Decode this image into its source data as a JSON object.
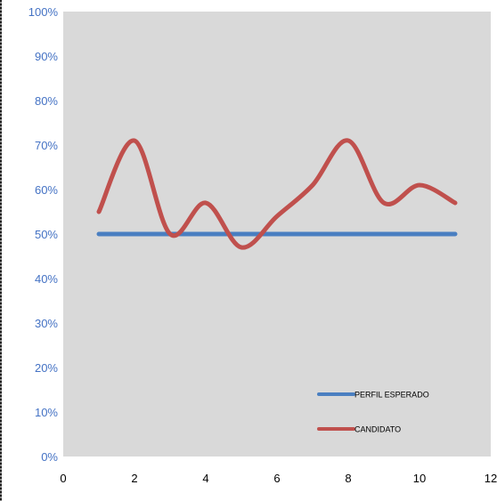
{
  "chart_data": {
    "type": "line",
    "x": [
      1,
      2,
      3,
      4,
      5,
      6,
      7,
      8,
      9,
      10,
      11
    ],
    "series": [
      {
        "name": "PERFIL ESPERADO",
        "color": "#4a7fc1",
        "values": [
          0.5,
          0.5,
          0.5,
          0.5,
          0.5,
          0.5,
          0.5,
          0.5,
          0.5,
          0.5,
          0.5
        ]
      },
      {
        "name": "CANDIDATO",
        "color": "#c0504d",
        "values": [
          0.55,
          0.71,
          0.5,
          0.57,
          0.47,
          0.54,
          0.61,
          0.71,
          0.57,
          0.61,
          0.57
        ]
      }
    ],
    "smooth": true,
    "xlim": [
      0,
      12
    ],
    "ylim": [
      0,
      1
    ],
    "y_ticks": [
      "0%",
      "10%",
      "20%",
      "30%",
      "40%",
      "50%",
      "60%",
      "70%",
      "80%",
      "90%",
      "100%"
    ],
    "x_ticks": [
      "0",
      "2",
      "4",
      "6",
      "8",
      "10",
      "12"
    ],
    "grid": false,
    "plot_background": "#d9d9d9",
    "legend_position": "bottom-right",
    "title": "",
    "xlabel": "",
    "ylabel": ""
  }
}
